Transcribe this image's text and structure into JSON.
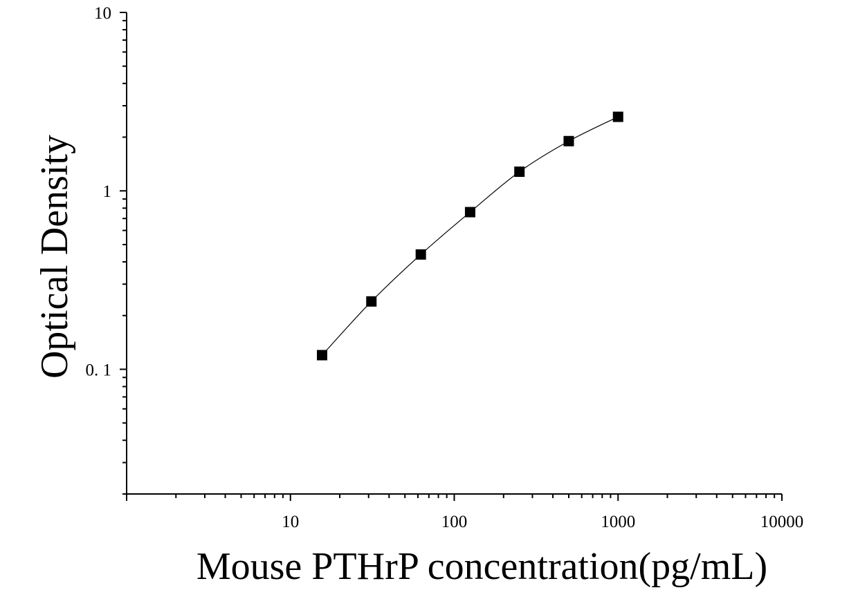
{
  "chart_data": {
    "type": "scatter",
    "title": "",
    "xlabel": "Mouse PTHrP concentration(pg/mL)",
    "ylabel": "Optical Density",
    "x_scale": "log",
    "y_scale": "log",
    "xlim": [
      1,
      10000
    ],
    "ylim": [
      0.02,
      10
    ],
    "x_tick_labels": [
      {
        "value": 10,
        "label": "10"
      },
      {
        "value": 100,
        "label": "100"
      },
      {
        "value": 1000,
        "label": "1000"
      },
      {
        "value": 10000,
        "label": "10000"
      }
    ],
    "y_tick_labels": [
      {
        "value": 0.1,
        "label": "0. 1"
      },
      {
        "value": 1,
        "label": "1"
      },
      {
        "value": 10,
        "label": "10"
      }
    ],
    "grid": false,
    "legend": "none",
    "series": [
      {
        "marker": "square",
        "color": "#000000",
        "fit_line": "smooth curve",
        "x": [
          15.6,
          31.2,
          62.5,
          125,
          250,
          500,
          1000
        ],
        "y": [
          0.12,
          0.24,
          0.44,
          0.76,
          1.28,
          1.9,
          2.6
        ]
      }
    ]
  }
}
